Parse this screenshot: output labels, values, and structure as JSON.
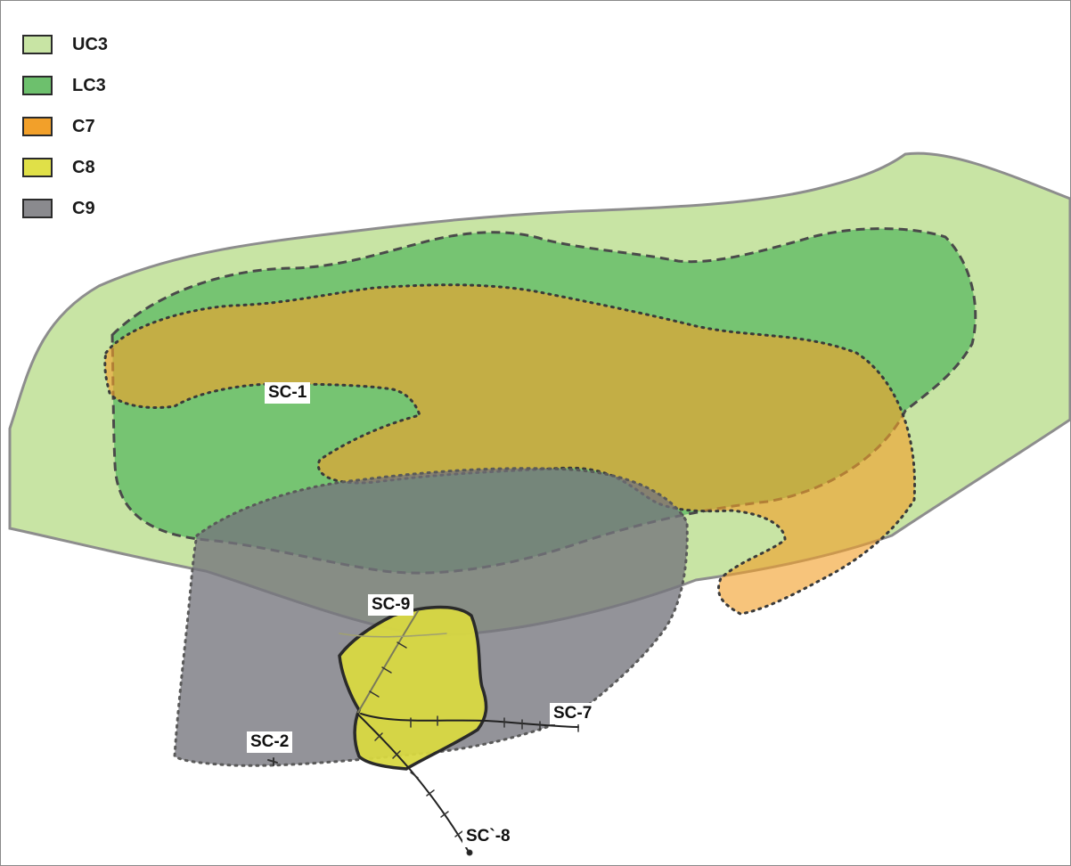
{
  "legend": [
    {
      "label": "UC3",
      "color": "#c8e4a4"
    },
    {
      "label": "LC3",
      "color": "#6dc06d"
    },
    {
      "label": "C7",
      "color": "#f2a02a"
    },
    {
      "label": "C8",
      "color": "#e0e048"
    },
    {
      "label": "C9",
      "color": "#8a8a8e"
    }
  ],
  "labels": {
    "sc1": "SC-1",
    "sc2": "SC-2",
    "sc7": "SC-7",
    "sc8": "SC`-8",
    "sc9": "SC-9"
  }
}
